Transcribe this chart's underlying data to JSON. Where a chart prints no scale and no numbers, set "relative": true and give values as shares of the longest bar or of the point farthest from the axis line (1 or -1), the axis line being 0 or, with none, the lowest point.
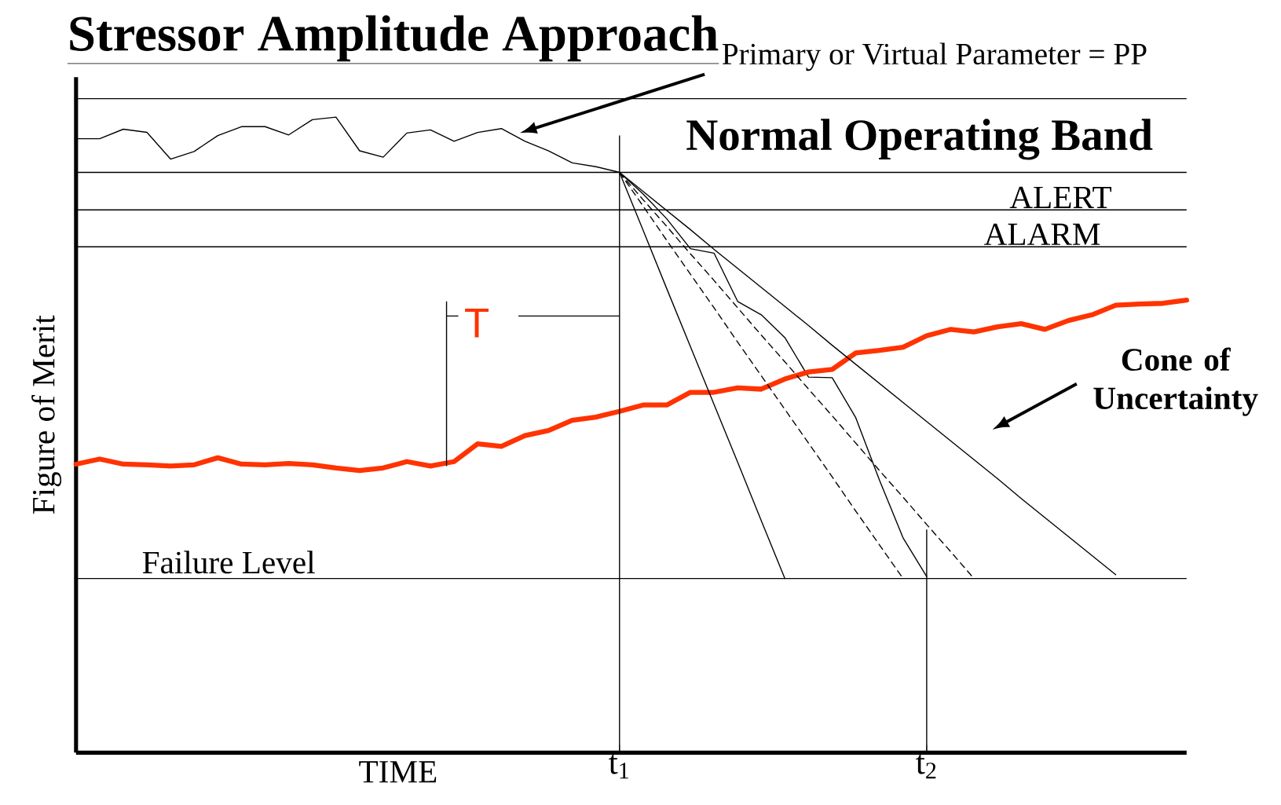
{
  "chart_data": {
    "type": "line",
    "relative": true,
    "title": "Stressor Amplitude Approach",
    "xlabel": "TIME",
    "ylabel": "Figure of Merit",
    "marker": "none",
    "categories": [
      null,
      null,
      null,
      null,
      null,
      null,
      null,
      null,
      null,
      null,
      null,
      null,
      null,
      null,
      null,
      null,
      null,
      null,
      null,
      null,
      null,
      null,
      null,
      "t$_{1}$",
      null,
      null,
      null,
      null,
      null,
      null,
      null,
      null,
      null,
      null,
      null,
      null,
      "t$_{2}$",
      null,
      null,
      null,
      null,
      null,
      null,
      null,
      null,
      null,
      null,
      null
    ],
    "series": [
      {
        "color": "#000000",
        "line_style": "solid",
        "values": [
          0.966,
          0.966,
          0.981,
          0.976,
          0.934,
          0.946,
          0.971,
          0.985,
          0.985,
          0.972,
          0.996,
          1.0,
          0.947,
          0.937,
          0.975,
          0.98,
          0.962,
          0.976,
          0.982,
          0.962,
          0.947,
          0.928,
          0.922,
          0.913,
          0.879,
          0.84,
          0.793,
          0.786,
          0.71,
          0.689,
          0.653,
          0.591,
          0.59,
          0.527,
          0.429,
          0.338,
          0.277,
          null,
          null,
          null,
          null,
          null,
          null,
          null,
          null,
          null,
          null,
          null
        ]
      },
      {
        "color": "#ff3300",
        "line_style": "solid",
        "values": [
          0.454,
          0.462,
          0.454,
          0.453,
          0.451,
          0.453,
          0.464,
          0.454,
          0.453,
          0.455,
          0.453,
          0.448,
          0.444,
          0.448,
          0.458,
          0.451,
          0.458,
          0.486,
          0.482,
          0.499,
          0.507,
          0.523,
          0.528,
          0.537,
          0.547,
          0.547,
          0.567,
          0.567,
          0.574,
          0.572,
          0.588,
          0.599,
          0.603,
          0.629,
          0.633,
          0.638,
          0.656,
          0.666,
          0.662,
          0.67,
          0.675,
          0.666,
          0.68,
          0.689,
          0.704,
          0.706,
          0.707,
          0.712
        ]
      },
      {
        "color": "#000000",
        "line_style": "solid",
        "values": [
          null,
          null,
          null,
          null,
          null,
          null,
          null,
          null,
          null,
          null,
          null,
          null,
          null,
          null,
          null,
          null,
          null,
          null,
          null,
          null,
          null,
          null,
          null,
          0.913,
          0.822,
          0.73,
          0.639,
          0.548,
          0.457,
          0.365,
          0.274,
          null,
          null,
          null,
          null,
          null,
          null,
          null,
          null,
          null,
          null,
          null,
          null,
          null,
          null,
          null,
          null,
          null
        ]
      },
      {
        "color": "#000000",
        "line_style": "dashed",
        "values": [
          null,
          null,
          null,
          null,
          null,
          null,
          null,
          null,
          null,
          null,
          null,
          null,
          null,
          null,
          null,
          null,
          null,
          null,
          null,
          null,
          null,
          null,
          null,
          0.913,
          0.86,
          0.806,
          0.753,
          0.7,
          0.646,
          0.593,
          0.54,
          0.487,
          0.434,
          0.38,
          0.327,
          0.274,
          null,
          null,
          null,
          null,
          null,
          null,
          null,
          null,
          null,
          null,
          null,
          null
        ]
      },
      {
        "color": "#000000",
        "line_style": "dashed",
        "values": [
          null,
          null,
          null,
          null,
          null,
          null,
          null,
          null,
          null,
          null,
          null,
          null,
          null,
          null,
          null,
          null,
          null,
          null,
          null,
          null,
          null,
          null,
          null,
          0.913,
          0.87,
          0.828,
          0.785,
          0.743,
          0.7,
          0.657,
          0.615,
          0.572,
          0.53,
          0.487,
          0.444,
          0.402,
          0.359,
          0.317,
          0.274,
          null,
          null,
          null,
          null,
          null,
          null,
          null,
          null,
          null
        ]
      },
      {
        "color": "#000000",
        "line_style": "solid",
        "values": [
          null,
          null,
          null,
          null,
          null,
          null,
          null,
          null,
          null,
          null,
          null,
          null,
          null,
          null,
          null,
          null,
          null,
          null,
          null,
          null,
          null,
          null,
          null,
          0.913,
          0.883,
          0.853,
          0.823,
          0.792,
          0.762,
          0.732,
          0.702,
          0.672,
          0.641,
          0.611,
          0.581,
          0.551,
          0.521,
          0.491,
          0.461,
          0.431,
          0.4,
          0.37,
          0.34,
          0.31,
          0.28,
          null,
          null,
          null
        ]
      }
    ],
    "ref_lines": [
      {
        "axis": "y",
        "value": 1.029
      },
      {
        "axis": "y",
        "value": 0.913,
        "label": "Normal Operating Band"
      },
      {
        "axis": "y",
        "value": 0.854,
        "label": "ALERT"
      },
      {
        "axis": "y",
        "value": 0.796,
        "label": "ALARM"
      },
      {
        "axis": "y",
        "value": 0.274,
        "label": "Failure Level"
      }
    ],
    "annotations": [
      "Primary or Virtual Parameter = PP",
      "Cone of Uncertainty",
      "T"
    ]
  }
}
